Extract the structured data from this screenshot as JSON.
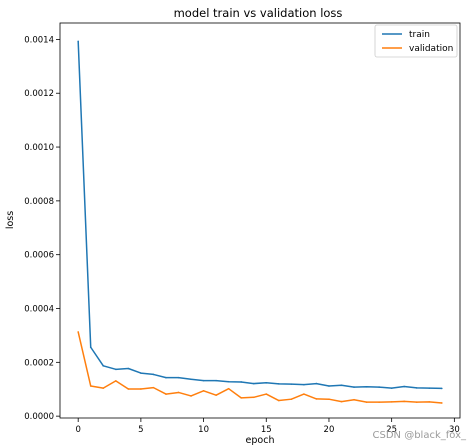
{
  "chart_data": {
    "type": "line",
    "title": "model train vs validation loss",
    "xlabel": "epoch",
    "ylabel": "loss",
    "xlim": [
      -1.45,
      30.45
    ],
    "ylim": [
      -6.9e-06,
      0.001461
    ],
    "xticks": [
      0,
      5,
      10,
      15,
      20,
      25,
      30
    ],
    "yticks": [
      0.0,
      0.0002,
      0.0004,
      0.0006,
      0.0008,
      0.001,
      0.0012,
      0.0014
    ],
    "ytick_labels": [
      "0.0000",
      "0.0002",
      "0.0004",
      "0.0006",
      "0.0008",
      "0.0010",
      "0.0012",
      "0.0014"
    ],
    "grid": false,
    "legend_position": "top-right",
    "x": [
      0,
      1,
      2,
      3,
      4,
      5,
      6,
      7,
      8,
      9,
      10,
      11,
      12,
      13,
      14,
      15,
      16,
      17,
      18,
      19,
      20,
      21,
      22,
      23,
      24,
      25,
      26,
      27,
      28,
      29
    ],
    "series": [
      {
        "name": "train",
        "color": "#1f77b4",
        "values": [
          0.001393,
          0.000256,
          0.000187,
          0.000174,
          0.000177,
          0.00016,
          0.000155,
          0.000143,
          0.000143,
          0.000137,
          0.000132,
          0.000132,
          0.000128,
          0.000127,
          0.000121,
          0.000124,
          0.00012,
          0.000119,
          0.000117,
          0.000121,
          0.000112,
          0.000115,
          0.000108,
          0.000109,
          0.000108,
          0.000104,
          0.00011,
          0.000105,
          0.000104,
          0.000103
        ]
      },
      {
        "name": "validation",
        "color": "#ff7f0e",
        "values": [
          0.000313,
          0.000112,
          0.000104,
          0.000131,
          0.000101,
          0.000101,
          0.000106,
          8.2e-05,
          8.8e-05,
          7.5e-05,
          9.4e-05,
          7.8e-05,
          0.000102,
          6.8e-05,
          7e-05,
          8.2e-05,
          5.8e-05,
          6.3e-05,
          8.2e-05,
          6.4e-05,
          6.3e-05,
          5.4e-05,
          6.1e-05,
          5.2e-05,
          5.2e-05,
          5.3e-05,
          5.5e-05,
          5.2e-05,
          5.3e-05,
          4.9e-05
        ]
      }
    ]
  },
  "watermark": "CSDN @black_fox_"
}
